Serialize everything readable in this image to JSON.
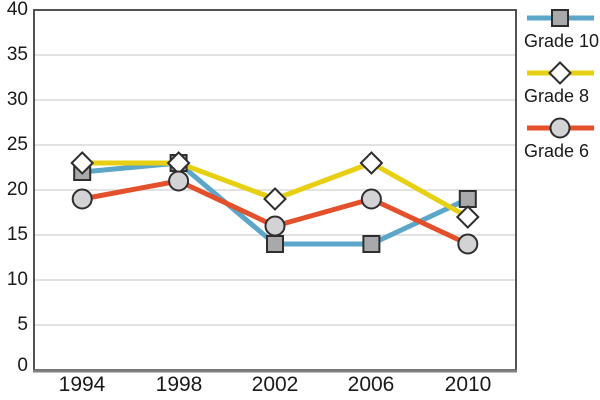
{
  "chart_data": {
    "type": "line",
    "title": "",
    "xlabel": "",
    "ylabel": "",
    "categories": [
      "1994",
      "1998",
      "2002",
      "2006",
      "2010"
    ],
    "yticks": [
      "40",
      "35",
      "30",
      "25",
      "20",
      "15",
      "10",
      "5",
      "0"
    ],
    "ylim": [
      0,
      40
    ],
    "ytick_step": 5,
    "grid": true,
    "legend_position": "right",
    "series": [
      {
        "name": "Grade 10",
        "marker": "square",
        "line_color": "#5BA6C9",
        "marker_fill": "#A9A9AB",
        "values": [
          22,
          23,
          14,
          14,
          19
        ]
      },
      {
        "name": "Grade 8",
        "marker": "diamond",
        "line_color": "#E7D013",
        "marker_fill": "#FFFFFF",
        "values": [
          23,
          23,
          19,
          23,
          17
        ]
      },
      {
        "name": "Grade 6",
        "marker": "circle",
        "line_color": "#E2512B",
        "marker_fill": "#D3D3D6",
        "values": [
          19,
          21,
          16,
          19,
          14
        ]
      }
    ],
    "colors": {
      "marker_stroke": "#2E2E2E",
      "grid_line": "#D9D9D9",
      "plot_border": "#3F3F3F",
      "bottom_border": "#7F7F7F",
      "text": "#1a1a1a"
    }
  }
}
